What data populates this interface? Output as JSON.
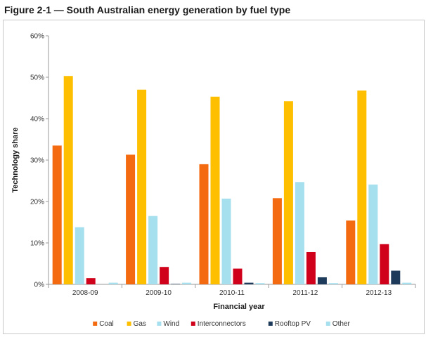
{
  "figure": {
    "title": "Figure 2-1 — South Australian energy generation by fuel type"
  },
  "chart_data": {
    "type": "bar",
    "title": "Figure 2-1 — South Australian energy generation by fuel type",
    "xlabel": "Financial year",
    "ylabel": "Technology share",
    "ylim": [
      0,
      60
    ],
    "yticks": [
      0,
      10,
      20,
      30,
      40,
      50,
      60
    ],
    "ytick_labels": [
      "0%",
      "10%",
      "20%",
      "30%",
      "40%",
      "50%",
      "60%"
    ],
    "grid": false,
    "legend_position": "bottom",
    "categories": [
      "2008-09",
      "2009-10",
      "2010-11",
      "2011-12",
      "2012-13"
    ],
    "series": [
      {
        "name": "Coal",
        "color": "#f46a10",
        "values": [
          33.5,
          31.3,
          29.0,
          20.8,
          15.4
        ]
      },
      {
        "name": "Gas",
        "color": "#fdbf00",
        "values": [
          50.3,
          47.0,
          45.3,
          44.2,
          46.8
        ]
      },
      {
        "name": "Wind",
        "color": "#a6dfee",
        "values": [
          13.8,
          16.5,
          20.7,
          24.7,
          24.1
        ]
      },
      {
        "name": "Interconnectors",
        "color": "#d0021b",
        "values": [
          1.5,
          4.2,
          3.8,
          7.8,
          9.7
        ]
      },
      {
        "name": "Rooftop PV",
        "color": "#1f3b5c",
        "values": [
          0.0,
          0.1,
          0.4,
          1.7,
          3.3
        ]
      },
      {
        "name": "Other",
        "color": "#a6dfee",
        "values": [
          0.4,
          0.4,
          0.3,
          0.3,
          0.4
        ]
      }
    ]
  }
}
